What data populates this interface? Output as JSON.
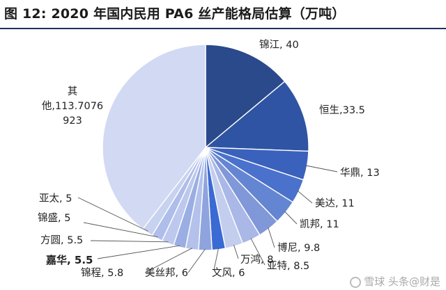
{
  "title": "图 12:  2020 年国内民用 PA6 丝产能格局估算（万吨）",
  "watermark": "雪球 头条@财是",
  "chart_data": {
    "type": "pie",
    "title": "图 12:  2020 年国内民用 PA6 丝产能格局估算（万吨）",
    "unit": "万吨",
    "slices": [
      {
        "name": "锦江",
        "value": 40,
        "label": "锦江, 40",
        "color": "#2b4a8c"
      },
      {
        "name": "恒生",
        "value": 33.5,
        "label": "恒生,33.5",
        "color": "#2f54a3"
      },
      {
        "name": "华鼎",
        "value": 13,
        "label": "华鼎, 13",
        "color": "#3a62bd"
      },
      {
        "name": "美达",
        "value": 11,
        "label": "美达, 11",
        "color": "#4a72cc"
      },
      {
        "name": "凯邦",
        "value": 11,
        "label": "凯邦, 11",
        "color": "#6485d2"
      },
      {
        "name": "博尼",
        "value": 9.8,
        "label": "博尼, 9.8",
        "color": "#8097d8"
      },
      {
        "name": "亚特",
        "value": 8.5,
        "label": "亚特, 8.5",
        "color": "#a9b8e6"
      },
      {
        "name": "万鸿",
        "value": 8,
        "label": "万鸿, 8",
        "color": "#c3cdee"
      },
      {
        "name": "文风",
        "value": 6,
        "label": "文风, 6",
        "color": "#3a6ad4"
      },
      {
        "name": "美丝邦",
        "value": 6,
        "label": "美丝邦, 6",
        "color": "#8fa4df"
      },
      {
        "name": "锦程",
        "value": 5.8,
        "label": "锦程, 5.8",
        "color": "#b4c1ea"
      },
      {
        "name": "嘉华",
        "value": 5.5,
        "label": "嘉华, 5.5",
        "color": "#9aaee3"
      },
      {
        "name": "方圆",
        "value": 5.5,
        "label": "方圆, 5.5",
        "color": "#bcc8ed"
      },
      {
        "name": "锦盛",
        "value": 5,
        "label": "锦盛, 5",
        "color": "#aebde9"
      },
      {
        "name": "亚太",
        "value": 5,
        "label": "亚太, 5",
        "color": "#c7d1f0"
      },
      {
        "name": "其他",
        "value": 113.7076923,
        "label": "其他,113.7076923",
        "color": "#d1d9f3"
      }
    ]
  }
}
